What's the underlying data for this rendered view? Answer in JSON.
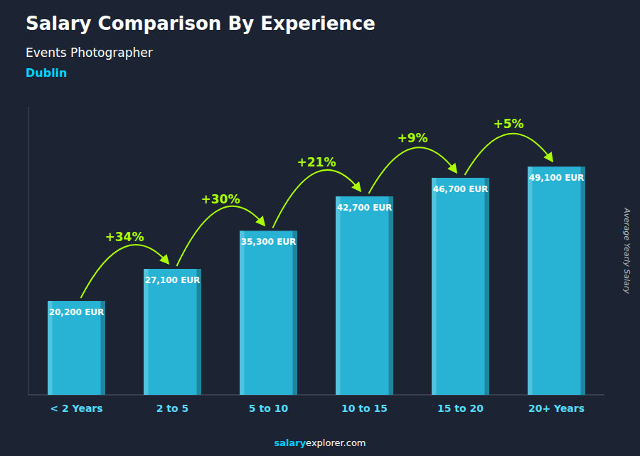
{
  "chart_data": {
    "type": "bar",
    "title": "Salary Comparison By Experience",
    "subtitle": "Events Photographer",
    "city": "Dublin",
    "ylabel": "Average Yearly Salary",
    "categories": [
      "< 2 Years",
      "2 to 5",
      "5 to 10",
      "10 to 15",
      "15 to 20",
      "20+ Years"
    ],
    "values": [
      20200,
      27100,
      35300,
      42700,
      46700,
      49100
    ],
    "value_labels": [
      "20,200 EUR",
      "27,100 EUR",
      "35,300 EUR",
      "42,700 EUR",
      "46,700 EUR",
      "49,100 EUR"
    ],
    "data_labels": true,
    "annotations": [
      "+34%",
      "+30%",
      "+21%",
      "+9%",
      "+5%"
    ],
    "watermark": [
      "salary",
      "explorer.com"
    ],
    "color": "#29BCDE",
    "ylim": [
      0,
      62000
    ],
    "tick_labels": "x",
    "grid": false
  }
}
